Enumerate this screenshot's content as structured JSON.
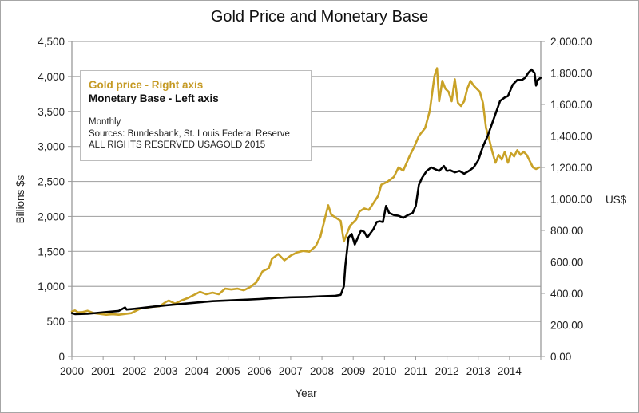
{
  "chart_data": {
    "type": "line",
    "title": "Gold Price and Monetary Base",
    "xlabel": "Year",
    "ylabel_left": "Billions $s",
    "ylabel_right": "US$",
    "x_range": [
      2000,
      2015
    ],
    "x_ticks": [
      "2000",
      "2001",
      "2002",
      "2003",
      "2004",
      "2005",
      "2006",
      "2007",
      "2008",
      "2009",
      "2010",
      "2011",
      "2012",
      "2013",
      "2014"
    ],
    "y_left_range": [
      0,
      4500
    ],
    "y_left_ticks": [
      "0",
      "500",
      "1,000",
      "1,500",
      "2,000",
      "2,500",
      "3,000",
      "3,500",
      "4,000",
      "4,500"
    ],
    "y_right_range": [
      0,
      2000
    ],
    "y_right_ticks": [
      "0.00",
      "200.00",
      "400.00",
      "600.00",
      "800.00",
      "1,000.00",
      "1,200.00",
      "1,400.00",
      "1,600.00",
      "1,800.00",
      "2,000.00"
    ],
    "grid": "horizontal",
    "legend": {
      "position": "top-left",
      "entries": [
        "Gold price - Right axis",
        "Monetary Base - Left axis"
      ],
      "notes": [
        "Monthly",
        "Sources: Bundesbank, St. Louis Federal Reserve",
        "ALL RIGHTS RESERVED USAGOLD 2015"
      ]
    },
    "series": [
      {
        "name": "Gold price - Right axis",
        "axis": "right",
        "color": "#c9a227",
        "x": [
          2000.0,
          2000.1,
          2000.2,
          2000.35,
          2000.5,
          2000.7,
          2000.9,
          2001.1,
          2001.3,
          2001.5,
          2001.7,
          2001.9,
          2002.0,
          2002.2,
          2002.4,
          2002.6,
          2002.8,
          2003.0,
          2003.1,
          2003.3,
          2003.5,
          2003.7,
          2003.9,
          2004.1,
          2004.3,
          2004.5,
          2004.7,
          2004.9,
          2005.1,
          2005.3,
          2005.5,
          2005.7,
          2005.9,
          2006.1,
          2006.3,
          2006.4,
          2006.6,
          2006.8,
          2007.0,
          2007.2,
          2007.4,
          2007.6,
          2007.8,
          2007.95,
          2008.1,
          2008.2,
          2008.3,
          2008.45,
          2008.6,
          2008.7,
          2008.8,
          2008.9,
          2009.1,
          2009.2,
          2009.35,
          2009.5,
          2009.6,
          2009.8,
          2009.9,
          2010.1,
          2010.3,
          2010.45,
          2010.6,
          2010.8,
          2010.95,
          2011.1,
          2011.3,
          2011.45,
          2011.6,
          2011.68,
          2011.75,
          2011.85,
          2011.95,
          2012.05,
          2012.15,
          2012.25,
          2012.35,
          2012.45,
          2012.55,
          2012.65,
          2012.75,
          2012.85,
          2012.95,
          2013.05,
          2013.15,
          2013.25,
          2013.35,
          2013.45,
          2013.55,
          2013.65,
          2013.75,
          2013.85,
          2013.95,
          2014.05,
          2014.15,
          2014.25,
          2014.35,
          2014.45,
          2014.55,
          2014.65,
          2014.75,
          2014.85,
          2014.95
        ],
        "values": [
          285,
          292,
          280,
          282,
          290,
          275,
          270,
          265,
          268,
          265,
          270,
          275,
          285,
          305,
          310,
          316,
          318,
          345,
          355,
          335,
          355,
          370,
          390,
          410,
          395,
          405,
          395,
          430,
          425,
          430,
          420,
          440,
          470,
          540,
          560,
          620,
          650,
          610,
          640,
          660,
          670,
          665,
          700,
          760,
          880,
          960,
          900,
          880,
          860,
          730,
          780,
          830,
          870,
          920,
          940,
          930,
          960,
          1020,
          1090,
          1110,
          1140,
          1200,
          1180,
          1270,
          1330,
          1400,
          1450,
          1560,
          1780,
          1830,
          1620,
          1750,
          1700,
          1680,
          1620,
          1760,
          1610,
          1590,
          1620,
          1700,
          1750,
          1720,
          1700,
          1680,
          1610,
          1450,
          1380,
          1300,
          1230,
          1280,
          1250,
          1300,
          1230,
          1290,
          1270,
          1310,
          1280,
          1300,
          1280,
          1240,
          1200,
          1190,
          1200
        ]
      },
      {
        "name": "Monetary Base - Left axis",
        "axis": "left",
        "color": "#000000",
        "x": [
          2000.0,
          2000.1,
          2000.5,
          2001.0,
          2001.5,
          2001.7,
          2001.75,
          2002.0,
          2002.5,
          2003.0,
          2003.5,
          2004.0,
          2004.5,
          2005.0,
          2005.5,
          2006.0,
          2006.5,
          2007.0,
          2007.5,
          2008.0,
          2008.4,
          2008.6,
          2008.7,
          2008.75,
          2008.85,
          2008.95,
          2009.05,
          2009.15,
          2009.25,
          2009.35,
          2009.45,
          2009.55,
          2009.65,
          2009.75,
          2009.85,
          2009.95,
          2010.05,
          2010.15,
          2010.3,
          2010.45,
          2010.6,
          2010.75,
          2010.9,
          2011.0,
          2011.1,
          2011.2,
          2011.35,
          2011.5,
          2011.6,
          2011.75,
          2011.9,
          2012.0,
          2012.1,
          2012.25,
          2012.4,
          2012.55,
          2012.7,
          2012.85,
          2013.0,
          2013.15,
          2013.3,
          2013.5,
          2013.7,
          2013.85,
          2013.95,
          2014.1,
          2014.25,
          2014.4,
          2014.5,
          2014.6,
          2014.7,
          2014.8,
          2014.85,
          2014.9,
          2015.0
        ],
        "values": [
          620,
          605,
          610,
          630,
          650,
          700,
          670,
          680,
          705,
          730,
          750,
          770,
          790,
          800,
          810,
          820,
          835,
          845,
          850,
          860,
          865,
          880,
          1000,
          1300,
          1700,
          1750,
          1600,
          1700,
          1800,
          1780,
          1700,
          1760,
          1820,
          1920,
          1930,
          1920,
          2150,
          2050,
          2020,
          2010,
          1980,
          2020,
          2050,
          2150,
          2450,
          2550,
          2650,
          2700,
          2680,
          2650,
          2720,
          2650,
          2660,
          2630,
          2650,
          2610,
          2650,
          2700,
          2800,
          3000,
          3150,
          3400,
          3650,
          3700,
          3720,
          3880,
          3950,
          3950,
          3980,
          4050,
          4100,
          4050,
          3870,
          3950,
          3980
        ]
      }
    ]
  }
}
